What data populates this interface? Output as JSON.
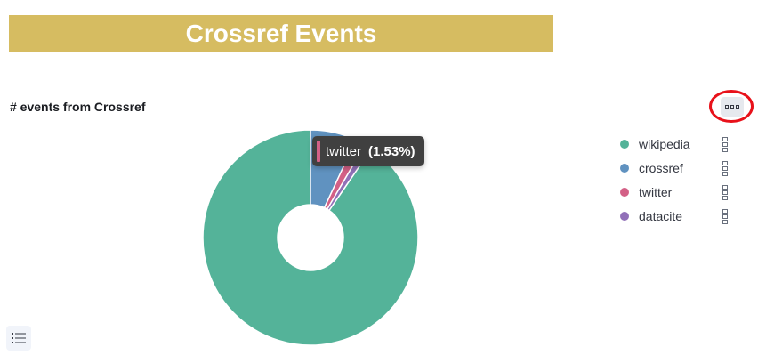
{
  "header": {
    "title": "Crossref Events"
  },
  "panel": {
    "title": "# events from Crossref",
    "options_icon": "ellipsis-icon",
    "legend_toggle_icon": "list-icon"
  },
  "tooltip": {
    "label": "twitter",
    "percent": "(1.53%)",
    "color": "#d36086"
  },
  "chart_data": {
    "type": "pie",
    "donut": true,
    "title": "# events from Crossref",
    "legend_position": "right",
    "categories": [
      "wikipedia",
      "crossref",
      "twitter",
      "datacite"
    ],
    "series": [
      {
        "values": [
          90.0,
          6.9,
          1.53,
          1.1
        ]
      }
    ],
    "colors": [
      "#54b399",
      "#6092c0",
      "#d36086",
      "#9170b8"
    ]
  },
  "legend": {
    "items": [
      {
        "label": "wikipedia",
        "color": "#54b399"
      },
      {
        "label": "crossref",
        "color": "#6092c0"
      },
      {
        "label": "twitter",
        "color": "#d36086"
      },
      {
        "label": "datacite",
        "color": "#9170b8"
      }
    ]
  }
}
